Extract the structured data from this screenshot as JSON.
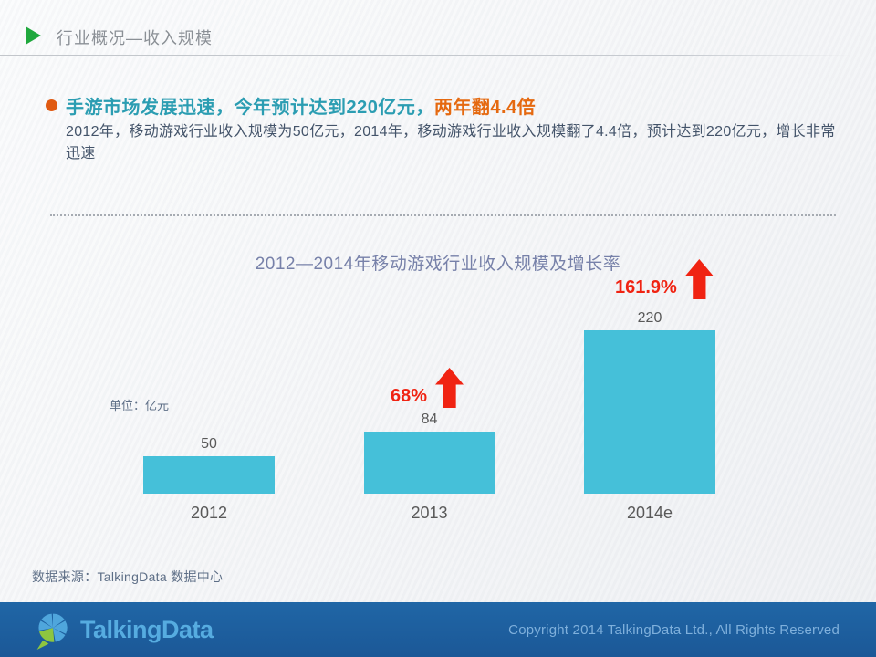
{
  "header": {
    "title": "行业概况—收入规模"
  },
  "bullet": {
    "heading_teal": "手游市场发展迅速，今年预计达到220亿元，",
    "heading_orange": "两年翻4.4倍",
    "body": "2012年，移动游戏行业收入规模为50亿元，2014年，移动游戏行业收入规模翻了4.4倍，预计达到220亿元，增长非常迅速"
  },
  "chart_data": {
    "type": "bar",
    "title": "2012—2014年移动游戏行业收入规模及增长率",
    "unit_label": "单位：亿元",
    "categories": [
      "2012",
      "2013",
      "2014e"
    ],
    "values": [
      50,
      84,
      220
    ],
    "value_labels": [
      "50",
      "84",
      "220"
    ],
    "growth": [
      {
        "category": "2013",
        "label": "68%"
      },
      {
        "category": "2014e",
        "label": "161.9%"
      }
    ],
    "ylim": [
      0,
      260
    ],
    "bar_color": "#45C0D9",
    "growth_color": "#F02312",
    "grid": false,
    "legend": false
  },
  "source": "数据来源：TalkingData 数据中心",
  "footer": {
    "logo_text": "TalkingData",
    "copyright": "Copyright 2014 TalkingData Ltd., All Rights Reserved"
  },
  "colors": {
    "heading_teal": "#2B9DB2",
    "heading_orange": "#E56910",
    "bullet_dot": "#E05A12",
    "body_text": "#44546A",
    "chart_title": "#7781A9",
    "axis_labels": "#595959",
    "bar": "#45C0D9",
    "growth_red": "#F02312",
    "header_green": "#1FA83D",
    "footer_bg": "#1C5C9C",
    "logo_blue": "#56ACE0",
    "logo_green": "#8DC63F",
    "copyright_text": "#7FB0DC"
  }
}
